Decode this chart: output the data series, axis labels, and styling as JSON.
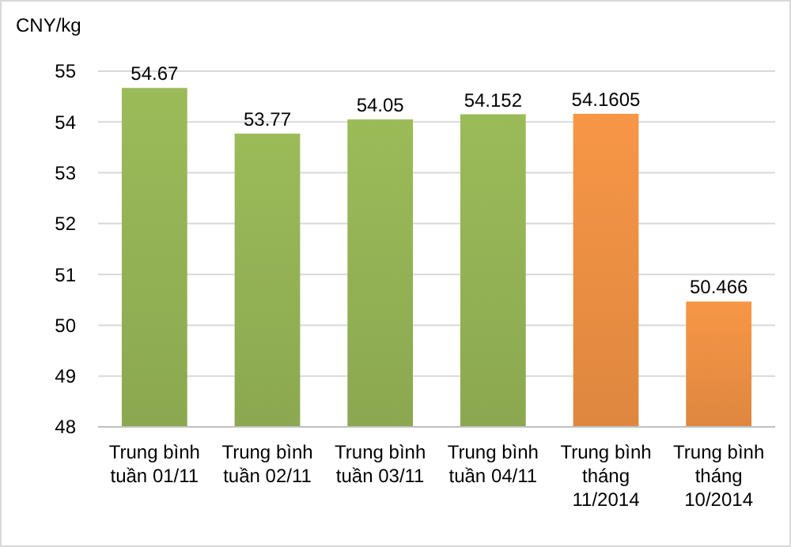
{
  "chart_data": {
    "type": "bar",
    "ylabel": "CNY/kg",
    "categories": [
      "Trung bình tuần 01/11",
      "Trung bình tuần 02/11",
      "Trung bình tuần 03/11",
      "Trung bình tuần 04/11",
      "Trung bình tháng 11/2014",
      "Trung bình tháng 10/2014"
    ],
    "values": [
      54.67,
      53.77,
      54.05,
      54.152,
      54.1605,
      50.466
    ],
    "colors": [
      "#9bbb59",
      "#9bbb59",
      "#9bbb59",
      "#9bbb59",
      "#f79646",
      "#f79646"
    ],
    "ylim": [
      48,
      55
    ],
    "yticks": [
      48,
      49,
      50,
      51,
      52,
      53,
      54,
      55
    ],
    "grid": "y",
    "data_labels": true
  }
}
